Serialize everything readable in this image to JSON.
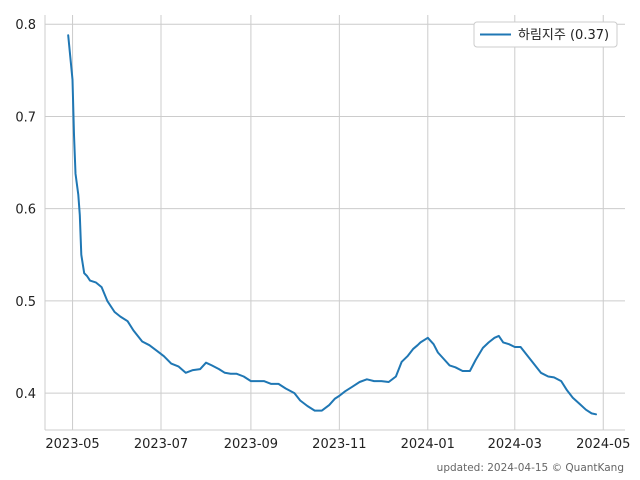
{
  "chart_data": {
    "type": "line",
    "title": "",
    "xlabel": "",
    "ylabel": "",
    "xlim": [
      "2023-04-12",
      "2024-05-16"
    ],
    "ylim": [
      0.36,
      0.81
    ],
    "x_ticks": [
      "2023-05-01",
      "2023-07-01",
      "2023-09-01",
      "2023-11-01",
      "2024-01-01",
      "2024-03-01",
      "2024-05-01"
    ],
    "x_tick_labels": [
      "2023-05",
      "2023-07",
      "2023-09",
      "2023-11",
      "2024-01",
      "2024-03",
      "2024-05"
    ],
    "y_ticks": [
      0.4,
      0.5,
      0.6,
      0.7,
      0.8
    ],
    "y_tick_labels": [
      "0.4",
      "0.5",
      "0.6",
      "0.7",
      "0.8"
    ],
    "grid": true,
    "legend_position": "top-right",
    "series": [
      {
        "name": "하림지주 (0.37)",
        "color": "#1f77b4",
        "x": [
          "2023-04-28",
          "2023-05-01",
          "2023-05-02",
          "2023-05-03",
          "2023-05-05",
          "2023-05-06",
          "2023-05-07",
          "2023-05-09",
          "2023-05-11",
          "2023-05-13",
          "2023-05-17",
          "2023-05-21",
          "2023-05-25",
          "2023-05-30",
          "2023-06-03",
          "2023-06-08",
          "2023-06-12",
          "2023-06-18",
          "2023-06-23",
          "2023-06-28",
          "2023-07-03",
          "2023-07-08",
          "2023-07-13",
          "2023-07-18",
          "2023-07-23",
          "2023-07-28",
          "2023-08-01",
          "2023-08-05",
          "2023-08-10",
          "2023-08-14",
          "2023-08-18",
          "2023-08-22",
          "2023-08-27",
          "2023-09-01",
          "2023-09-05",
          "2023-09-10",
          "2023-09-15",
          "2023-09-20",
          "2023-09-25",
          "2023-10-01",
          "2023-10-05",
          "2023-10-10",
          "2023-10-15",
          "2023-10-20",
          "2023-10-25",
          "2023-10-29",
          "2023-11-01",
          "2023-11-05",
          "2023-11-10",
          "2023-11-15",
          "2023-11-20",
          "2023-11-25",
          "2023-11-30",
          "2023-12-05",
          "2023-12-10",
          "2023-12-14",
          "2023-12-18",
          "2023-12-22",
          "2023-12-25",
          "2023-12-27",
          "2024-01-01",
          "2024-01-05",
          "2024-01-08",
          "2024-01-12",
          "2024-01-16",
          "2024-01-20",
          "2024-01-25",
          "2024-01-30",
          "2024-02-03",
          "2024-02-08",
          "2024-02-12",
          "2024-02-16",
          "2024-02-19",
          "2024-02-22",
          "2024-02-26",
          "2024-03-01",
          "2024-03-05",
          "2024-03-09",
          "2024-03-14",
          "2024-03-19",
          "2024-03-24",
          "2024-03-28",
          "2024-04-02",
          "2024-04-06",
          "2024-04-10",
          "2024-04-15",
          "2024-04-19",
          "2024-04-23",
          "2024-04-26"
        ],
        "y": [
          0.788,
          0.74,
          0.68,
          0.638,
          0.615,
          0.593,
          0.55,
          0.53,
          0.527,
          0.522,
          0.52,
          0.515,
          0.5,
          0.488,
          0.483,
          0.478,
          0.468,
          0.456,
          0.452,
          0.446,
          0.44,
          0.432,
          0.429,
          0.422,
          0.425,
          0.426,
          0.433,
          0.43,
          0.426,
          0.422,
          0.421,
          0.421,
          0.418,
          0.413,
          0.413,
          0.413,
          0.41,
          0.41,
          0.405,
          0.4,
          0.392,
          0.386,
          0.381,
          0.381,
          0.387,
          0.394,
          0.397,
          0.402,
          0.407,
          0.412,
          0.415,
          0.413,
          0.413,
          0.412,
          0.418,
          0.434,
          0.44,
          0.448,
          0.452,
          0.455,
          0.46,
          0.453,
          0.444,
          0.437,
          0.43,
          0.428,
          0.424,
          0.424,
          0.436,
          0.449,
          0.455,
          0.46,
          0.462,
          0.455,
          0.453,
          0.45,
          0.45,
          0.442,
          0.432,
          0.422,
          0.418,
          0.417,
          0.413,
          0.403,
          0.395,
          0.388,
          0.382,
          0.378,
          0.377
        ]
      }
    ],
    "footer": "updated: 2024-04-15 © QuantKang"
  }
}
